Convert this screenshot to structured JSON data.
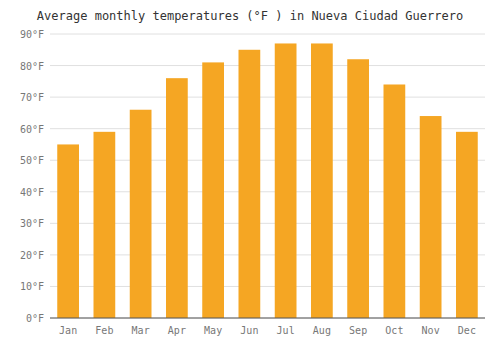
{
  "chart_data": {
    "type": "bar",
    "title": "Average monthly temperatures (°F ) in Nueva Ciudad Guerrero",
    "categories": [
      "Jan",
      "Feb",
      "Mar",
      "Apr",
      "May",
      "Jun",
      "Jul",
      "Aug",
      "Sep",
      "Oct",
      "Nov",
      "Dec"
    ],
    "values": [
      55,
      59,
      66,
      76,
      81,
      85,
      87,
      87,
      82,
      74,
      64,
      59
    ],
    "color": "#F5A623",
    "ylim": [
      0,
      90
    ],
    "yticks": [
      {
        "value": 0,
        "label": "0°F"
      },
      {
        "value": 10,
        "label": "10°F"
      },
      {
        "value": 20,
        "label": "20°F"
      },
      {
        "value": 30,
        "label": "30°F"
      },
      {
        "value": 40,
        "label": "40°F"
      },
      {
        "value": 50,
        "label": "50°F"
      },
      {
        "value": 60,
        "label": "60°F"
      },
      {
        "value": 70,
        "label": "70°F"
      },
      {
        "value": 80,
        "label": "80°F"
      },
      {
        "value": 90,
        "label": "90°F"
      }
    ],
    "grid": true
  }
}
